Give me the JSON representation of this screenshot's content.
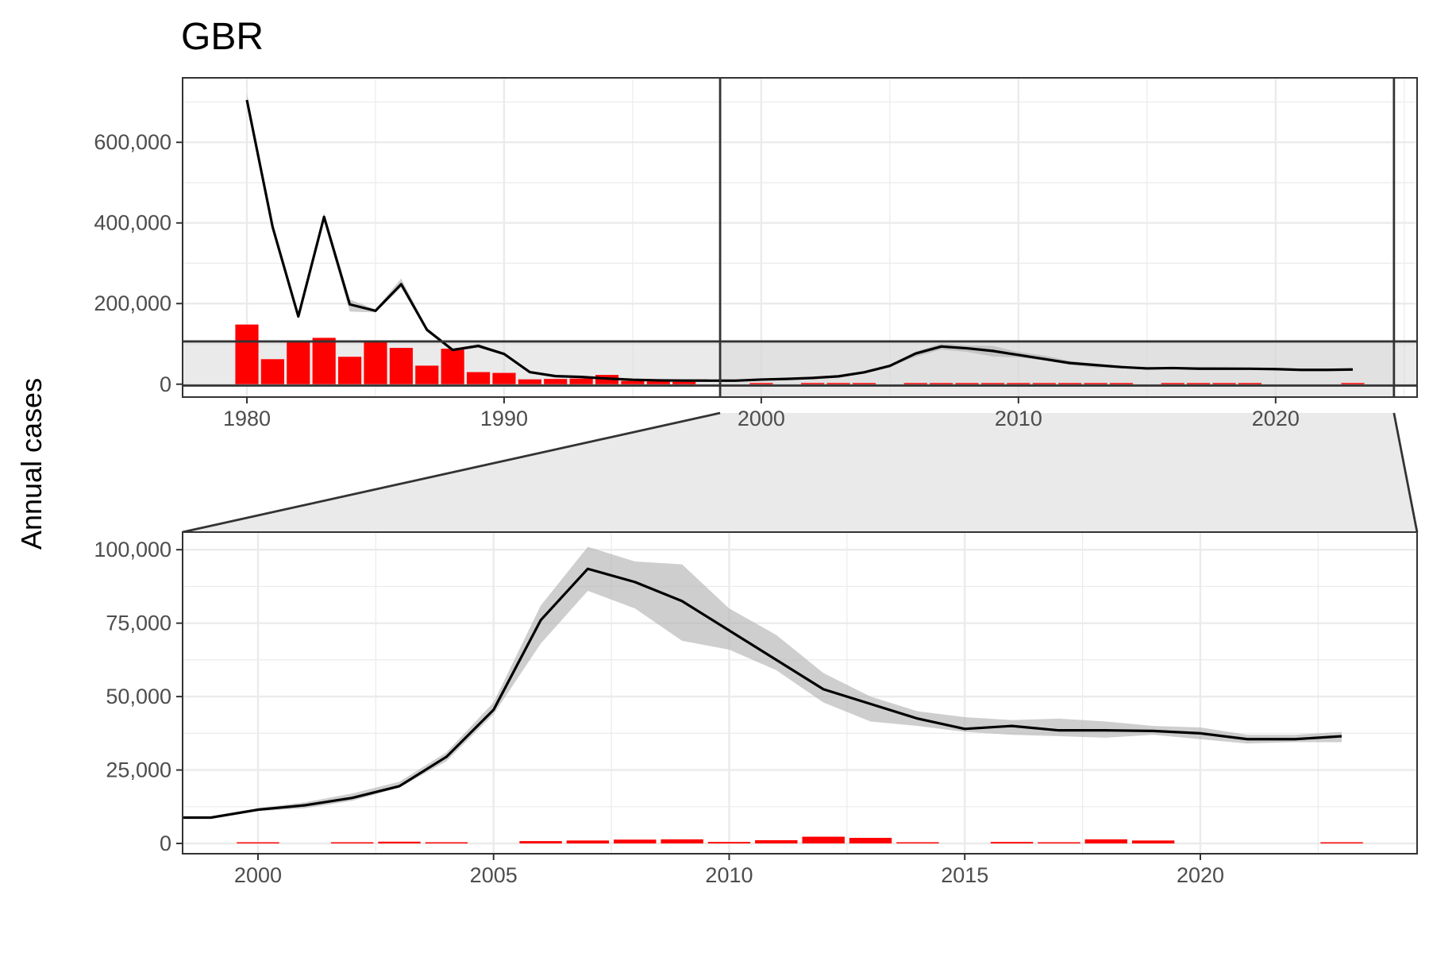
{
  "chart_data": {
    "type": "line",
    "title": "GBR",
    "ylabel": "Annual cases",
    "colors": {
      "line": "#000000",
      "ribbon": "#b3b3b3",
      "bars": "#ff0000",
      "panel_border": "#333333",
      "grid": "#ebebeb",
      "zoom_region": "#d9d9d9"
    },
    "series": [
      {
        "role": "estimate-line-with-uncertainty-band",
        "x": [
          1980,
          1981,
          1982,
          1983,
          1984,
          1985,
          1986,
          1987,
          1988,
          1989,
          1990,
          1991,
          1992,
          1993,
          1994,
          1995,
          1996,
          1997,
          1998,
          1999,
          2000,
          2001,
          2002,
          2003,
          2004,
          2005,
          2006,
          2007,
          2008,
          2009,
          2010,
          2011,
          2012,
          2013,
          2014,
          2015,
          2016,
          2017,
          2018,
          2019,
          2020,
          2021,
          2022,
          2023
        ],
        "y": [
          705000,
          390000,
          168000,
          415000,
          198000,
          182000,
          248000,
          135000,
          85000,
          95000,
          75000,
          30000,
          20000,
          18000,
          14000,
          11000,
          9500,
          9000,
          8800,
          8800,
          11500,
          13000,
          15500,
          19500,
          29500,
          45500,
          76000,
          93500,
          89000,
          82500,
          72500,
          62500,
          52500,
          47500,
          42500,
          39000,
          40000,
          38500,
          38500,
          38300,
          37500,
          35500,
          35500,
          36500
        ],
        "lower": [
          690000,
          385000,
          165000,
          405000,
          180000,
          178000,
          240000,
          130000,
          82000,
          90000,
          72000,
          28000,
          18500,
          16500,
          13000,
          10500,
          9000,
          8500,
          8400,
          8400,
          11000,
          12000,
          14500,
          19000,
          28000,
          44000,
          68000,
          86000,
          80000,
          69000,
          66000,
          59000,
          48000,
          41500,
          40000,
          38000,
          37000,
          36500,
          36000,
          37000,
          35500,
          34000,
          34500,
          34500
        ],
        "upper": [
          720000,
          395000,
          170000,
          425000,
          210000,
          186000,
          262000,
          140000,
          88000,
          100000,
          78000,
          32000,
          21500,
          19500,
          15000,
          11500,
          10000,
          9500,
          9200,
          9200,
          12000,
          14000,
          17000,
          21000,
          31000,
          48000,
          81000,
          101000,
          96000,
          95000,
          80000,
          71000,
          58000,
          50000,
          45000,
          43000,
          42000,
          42500,
          41500,
          40000,
          39500,
          37000,
          37000,
          38000
        ]
      },
      {
        "role": "reported-bars",
        "x": [
          1980,
          1981,
          1982,
          1983,
          1984,
          1985,
          1986,
          1987,
          1988,
          1989,
          1990,
          1991,
          1992,
          1993,
          1994,
          1995,
          1996,
          1997,
          2000,
          2002,
          2003,
          2004,
          2006,
          2007,
          2008,
          2009,
          2010,
          2011,
          2012,
          2013,
          2014,
          2016,
          2017,
          2018,
          2019,
          2023
        ],
        "values": [
          148000,
          62000,
          106000,
          115000,
          68000,
          106000,
          90000,
          46000,
          88000,
          30000,
          28000,
          12000,
          13000,
          14000,
          23000,
          8000,
          7000,
          6000,
          150,
          200,
          600,
          250,
          800,
          1000,
          1300,
          1400,
          500,
          1100,
          2300,
          1900,
          300,
          500,
          250,
          1400,
          1000,
          400
        ]
      }
    ],
    "panels": [
      {
        "name": "overview",
        "xlim": [
          1977.5,
          2025.5
        ],
        "ylim": [
          -32000,
          760000
        ],
        "xticks": [
          1980,
          1990,
          2000,
          2010,
          2020
        ],
        "xtick_labels": [
          "1980",
          "1990",
          "2000",
          "2010",
          "2020"
        ],
        "yticks": [
          0,
          200000,
          400000,
          600000
        ],
        "ytick_labels": [
          "0",
          "200,000",
          "400,000",
          "600,000"
        ],
        "grid": true
      },
      {
        "name": "zoom",
        "xlim": [
          1998.4,
          2024.6
        ],
        "ylim": [
          -3500,
          106000
        ],
        "xticks": [
          2000,
          2005,
          2010,
          2015,
          2020
        ],
        "xtick_labels": [
          "2000",
          "2005",
          "2010",
          "2015",
          "2020"
        ],
        "yticks": [
          0,
          25000,
          50000,
          75000,
          100000
        ],
        "ytick_labels": [
          "0",
          "25,000",
          "50,000",
          "75,000",
          "100,000"
        ],
        "grid": true
      }
    ],
    "zoom_region": {
      "x": [
        1998.4,
        2024.6
      ],
      "y": [
        -3500,
        106000
      ]
    },
    "legend": "none"
  }
}
